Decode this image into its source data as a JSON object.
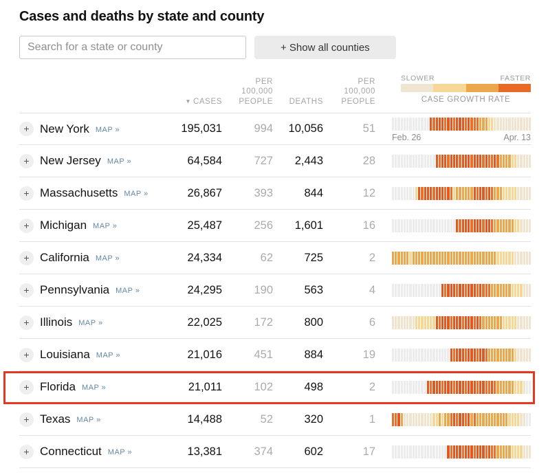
{
  "title": "Cases and deaths by state and county",
  "search": {
    "placeholder": "Search for a state or county"
  },
  "show_all_button": "+ Show all counties",
  "columns": {
    "sort_indicator": "▼",
    "cases": "CASES",
    "per100k_lines": [
      "PER",
      "100,000",
      "PEOPLE"
    ],
    "deaths": "DEATHS"
  },
  "legend": {
    "slower": "SLOWER",
    "faster": "FASTER",
    "caption": "CASE GROWTH RATE",
    "colors": [
      "#f0e5d1",
      "#f6d795",
      "#eba74c",
      "#e96a28"
    ]
  },
  "date_range": {
    "start": "Feb. 26",
    "end": "Apr. 13"
  },
  "labels": {
    "map": "MAP »",
    "expand": "+"
  },
  "palette": [
    "#ececec",
    "#f0e4cf",
    "#f6d795",
    "#eba74c",
    "#ec7029",
    "#e4571f"
  ],
  "highlight_color": "#e53823",
  "rows": [
    {
      "state": "New York",
      "cases": "195,031",
      "cases_per100k": "994",
      "deaths": "10,056",
      "deaths_per100k": "51",
      "highlighted": false,
      "growth": "000000000000054555455455545444333221111111111111"
    },
    {
      "state": "New Jersey",
      "cases": "64,584",
      "cases_per100k": "727",
      "deaths": "2,443",
      "deaths_per100k": "28",
      "highlighted": false,
      "growth": "000000000000000545545554555455545445433332211111"
    },
    {
      "state": "Massachusetts",
      "cases": "26,867",
      "cases_per100k": "393",
      "deaths": "844",
      "deaths_per100k": "12",
      "highlighted": false,
      "growth": "000000002545554555454233333354554543332222211111"
    },
    {
      "state": "Michigan",
      "cases": "25,487",
      "cases_per100k": "256",
      "deaths": "1,601",
      "deaths_per100k": "16",
      "highlighted": false,
      "growth": "000000000000000000000054555455545543333333221111"
    },
    {
      "state": "California",
      "cases": "24,334",
      "cases_per100k": "62",
      "deaths": "725",
      "deaths_per100k": "2",
      "highlighted": false,
      "growth": "333333233333333333333333333333333333222222111111"
    },
    {
      "state": "Pennsylvania",
      "cases": "24,295",
      "cases_per100k": "190",
      "deaths": "563",
      "deaths_per100k": "4",
      "highlighted": false,
      "growth": "000000000000000005455545545554544433333332222111"
    },
    {
      "state": "Illinois",
      "cases": "22,025",
      "cases_per100k": "172",
      "deaths": "800",
      "deaths_per100k": "6",
      "highlighted": false,
      "growth": "111111112222222545554555455545433333332222211111"
    },
    {
      "state": "Louisiana",
      "cases": "21,016",
      "cases_per100k": "451",
      "deaths": "884",
      "deaths_per100k": "19",
      "highlighted": false,
      "growth": "000000000000000000005455545554554333333333211111"
    },
    {
      "state": "Florida",
      "cases": "21,011",
      "cases_per100k": "102",
      "deaths": "498",
      "deaths_per100k": "2",
      "highlighted": true,
      "growth": "000000000000545554555455545554554454333333222100"
    },
    {
      "state": "Texas",
      "cases": "14,488",
      "cases_per100k": "52",
      "deaths": "320",
      "deaths_per100k": "1",
      "highlighted": false,
      "growth": "445311111111112232334545545343333333333322221100"
    },
    {
      "state": "Connecticut",
      "cases": "13,381",
      "cases_per100k": "374",
      "deaths": "602",
      "deaths_per100k": "17",
      "highlighted": false,
      "growth": "000000000000000000054555455545554544333332222111"
    }
  ]
}
